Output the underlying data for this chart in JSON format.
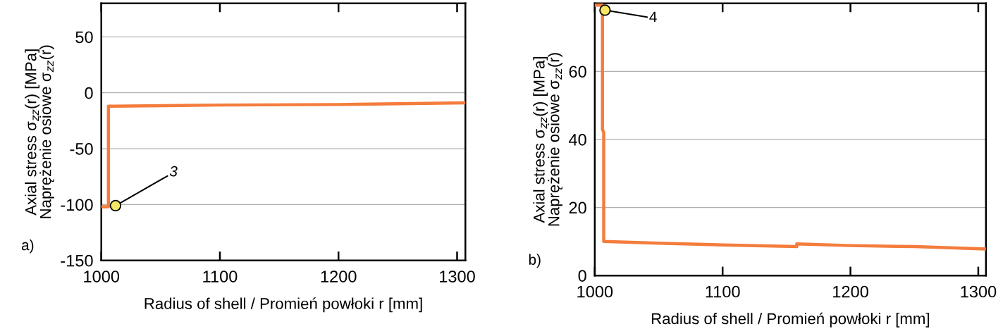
{
  "chart_data": [
    {
      "type": "line",
      "xlabel": "Radius of shell / Promień powłoki r [mm]",
      "ylabel": "Axial stress σ$_{zz}$(r) [MPa]\nNaprężenie osiowe σ$_{zz}$(r)",
      "xlim": [
        1000,
        1307
      ],
      "ylim": [
        -150,
        80
      ],
      "xticks": [
        1000,
        1100,
        1200,
        1300
      ],
      "yticks": [
        -150,
        -100,
        -50,
        0,
        50
      ],
      "grid": "y",
      "series": [
        {
          "color": "#f47c3c",
          "x": [
            1000,
            1006,
            1006,
            1010,
            1100,
            1200,
            1307
          ],
          "values": [
            -102,
            -102,
            -12,
            -12,
            -11,
            -10.5,
            -9
          ]
        },
        {
          "type": "scatter",
          "color": "#f5e663",
          "marker": "circle",
          "x": [
            1012
          ],
          "values": [
            -101
          ]
        }
      ],
      "annotations": [
        {
          "text": "3",
          "x": 1012,
          "y": -101
        },
        "a)"
      ]
    },
    {
      "type": "line",
      "xlabel": "Radius of shell / Promień powłoki r [mm]",
      "ylabel": "Axial stress σ$_{zz}$(r) [MPa]\nNaprężenie osiowe σ$_{zz}$(r)",
      "xlim": [
        1000,
        1306
      ],
      "ylim": [
        0,
        80
      ],
      "xticks": [
        1000,
        1100,
        1200,
        1300
      ],
      "yticks": [
        0,
        20,
        40,
        60
      ],
      "grid": "y",
      "series": [
        {
          "color": "#f47c3c",
          "x": [
            1000,
            1006,
            1006,
            1007,
            1007,
            1050,
            1100,
            1158,
            1158,
            1200,
            1250,
            1306
          ],
          "values": [
            79.5,
            79.5,
            43,
            42,
            10,
            9.5,
            9,
            8.5,
            9.3,
            8.8,
            8.5,
            7.8
          ]
        },
        {
          "type": "scatter",
          "color": "#f5e663",
          "marker": "circle",
          "x": [
            1008
          ],
          "values": [
            78
          ]
        }
      ],
      "annotations": [
        {
          "text": "4",
          "x": 1008,
          "y": 78
        },
        "b)"
      ]
    }
  ]
}
